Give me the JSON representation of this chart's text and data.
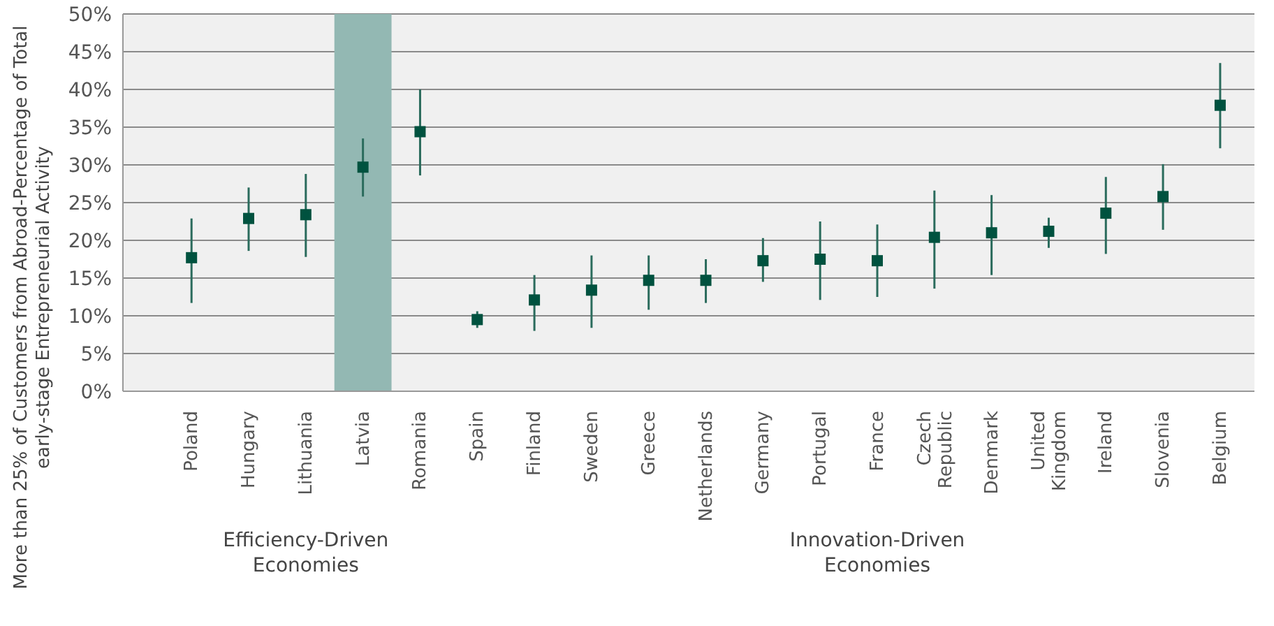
{
  "chart_data": {
    "type": "scatter",
    "ylabel": "More than 25% of Customers from Abroad-Percentage of Total early-stage Entrepreneurial Activity",
    "categories": [
      "Poland",
      "Hungary",
      "Lithuania",
      "Latvia",
      "Romania",
      "Spain",
      "Finland",
      "Sweden",
      "Greece",
      "Netherlands",
      "Germany",
      "Portugal",
      "France",
      "Czech Republic",
      "Denmark",
      "United Kingdom",
      "Ireland",
      "Slovenia",
      "Belgium"
    ],
    "values": [
      17.7,
      22.9,
      23.4,
      29.7,
      34.4,
      9.5,
      12.1,
      13.4,
      14.7,
      14.7,
      17.3,
      17.5,
      17.3,
      20.4,
      21.0,
      21.2,
      23.6,
      25.8,
      37.9
    ],
    "errors": [
      [
        11.7,
        22.9
      ],
      [
        18.6,
        27
      ],
      [
        17.8,
        28.8
      ],
      [
        25.8,
        33.5
      ],
      [
        28.6,
        40
      ],
      [
        8.4,
        10.6
      ],
      [
        8.0,
        15.4
      ],
      [
        8.4,
        18
      ],
      [
        10.8,
        18
      ],
      [
        11.7,
        17.5
      ],
      [
        14.5,
        20.3
      ],
      [
        12.1,
        22.5
      ],
      [
        12.5,
        22.1
      ],
      [
        13.6,
        26.6
      ],
      [
        15.4,
        26
      ],
      [
        19.0,
        23.0
      ],
      [
        18.2,
        28.4
      ],
      [
        21.4,
        30.1
      ],
      [
        32.2,
        43.5
      ]
    ],
    "color": "#00523f",
    "marker": "square",
    "ylim": [
      0,
      50
    ],
    "yticks": [
      {
        "value": 0,
        "label": "0%"
      },
      {
        "value": 5,
        "label": "5%"
      },
      {
        "value": 10,
        "label": "10%"
      },
      {
        "value": 15,
        "label": "15%"
      },
      {
        "value": 20,
        "label": "20%"
      },
      {
        "value": 25,
        "label": "25%"
      },
      {
        "value": 30,
        "label": "30%"
      },
      {
        "value": 35,
        "label": "35%"
      },
      {
        "value": 40,
        "label": "40%"
      },
      {
        "value": 45,
        "label": "45%"
      },
      {
        "value": 50,
        "label": "50%"
      }
    ],
    "grid": "y",
    "bands": [
      {
        "axis": "x",
        "from": "Latvia",
        "to": "Latvia",
        "color": "#93b8b3"
      }
    ],
    "annotations": [
      "Efficiency-Driven Economies",
      "Innovation-Driven Economies"
    ]
  }
}
